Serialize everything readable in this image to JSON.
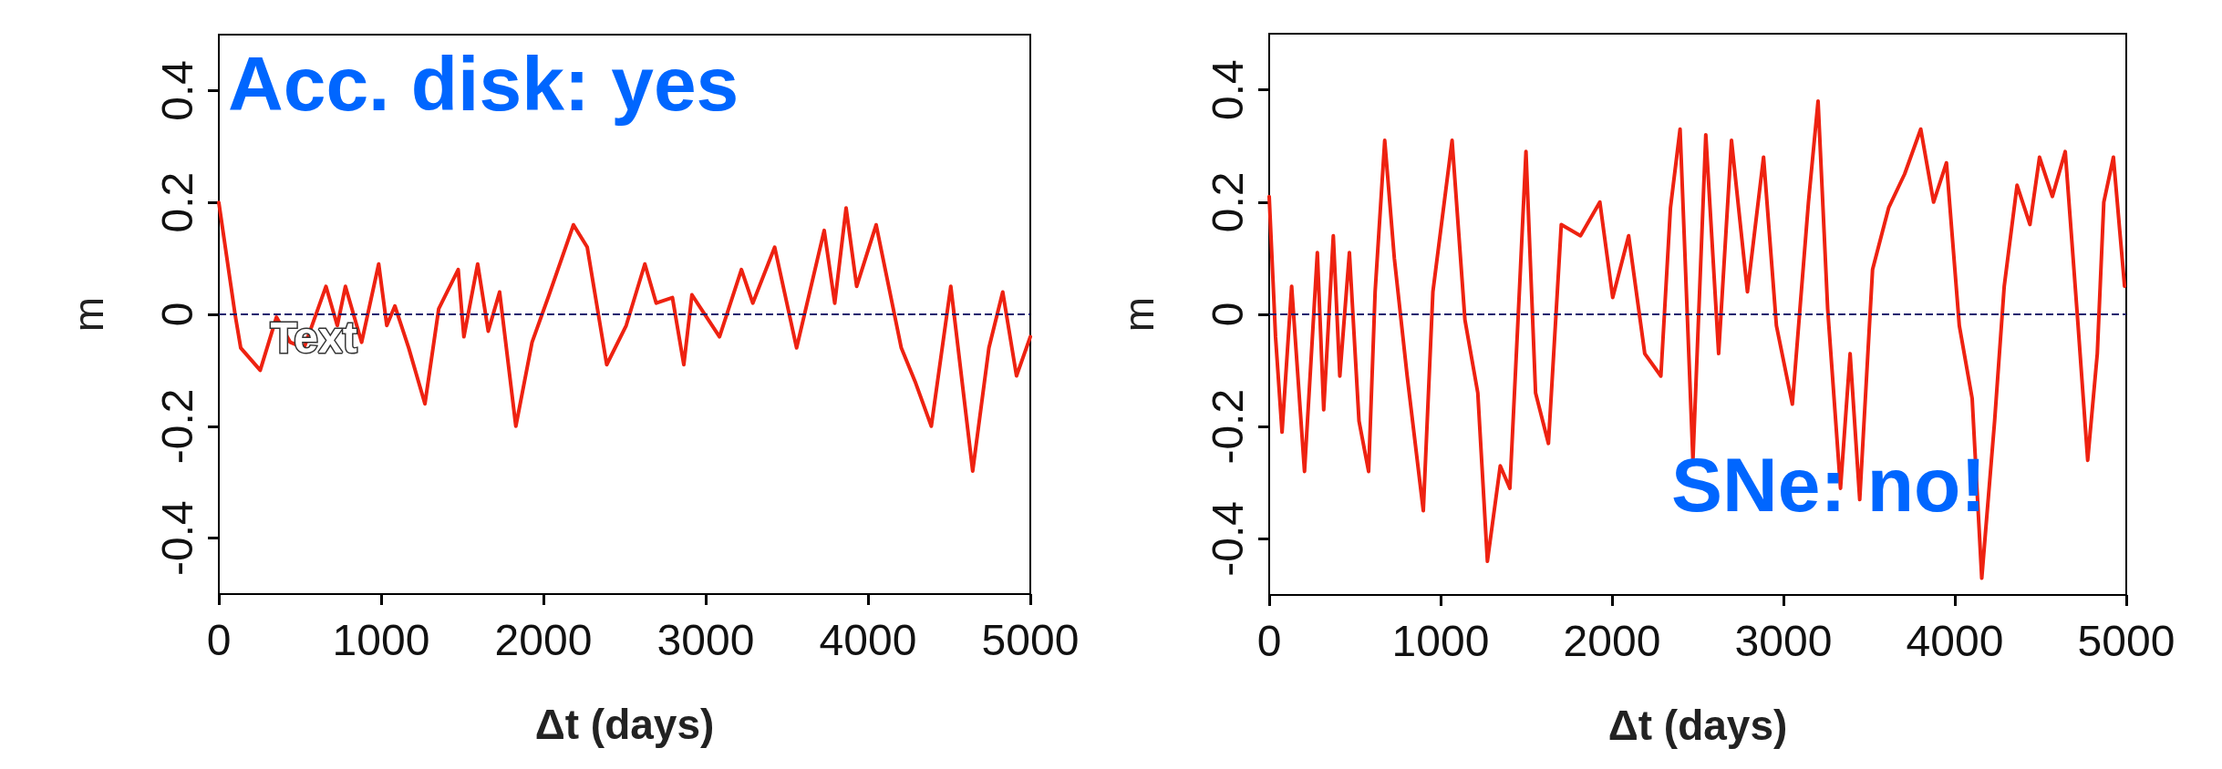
{
  "chart_data": [
    {
      "type": "line",
      "xlabel": "Δt (days)",
      "ylabel": "m",
      "xlim": [
        0,
        5000
      ],
      "xticks": [
        0,
        1000,
        2000,
        3000,
        4000,
        5000
      ],
      "ylim": [
        -0.5,
        0.5
      ],
      "yticks": [
        -0.4,
        -0.2,
        0,
        0.2,
        0.4
      ],
      "grid": false,
      "marker": "none",
      "line_style": "solid",
      "annotations": [
        "Acc. disk: yes",
        "Text"
      ],
      "ref_lines": [
        {
          "axis": "y",
          "value": 0,
          "color": "#1a1a6e",
          "line_style": "dashed"
        }
      ],
      "series": [
        {
          "color": "#ee2211",
          "x": [
            0,
            100,
            135,
            255,
            355,
            440,
            525,
            660,
            730,
            780,
            880,
            985,
            1035,
            1085,
            1170,
            1270,
            1355,
            1475,
            1510,
            1595,
            1660,
            1730,
            1830,
            1930,
            2035,
            2185,
            2270,
            2390,
            2510,
            2625,
            2695,
            2795,
            2865,
            2915,
            3085,
            3220,
            3290,
            3425,
            3560,
            3730,
            3795,
            3865,
            3930,
            4050,
            4205,
            4290,
            4390,
            4510,
            4645,
            4745,
            4830,
            4915,
            5000
          ],
          "values": [
            0.2,
            0.0,
            -0.06,
            -0.1,
            -0.005,
            -0.05,
            -0.06,
            0.05,
            -0.02,
            0.05,
            -0.05,
            0.09,
            -0.02,
            0.015,
            -0.06,
            -0.16,
            0.01,
            0.08,
            -0.04,
            0.09,
            -0.03,
            0.04,
            -0.2,
            -0.05,
            0.035,
            0.16,
            0.12,
            -0.09,
            -0.02,
            0.09,
            0.02,
            0.03,
            -0.09,
            0.035,
            -0.04,
            0.08,
            0.02,
            0.12,
            -0.06,
            0.15,
            0.02,
            0.19,
            0.05,
            0.16,
            -0.06,
            -0.12,
            -0.2,
            0.05,
            -0.28,
            -0.06,
            0.04,
            -0.11,
            -0.04
          ]
        }
      ]
    },
    {
      "type": "line",
      "xlabel": "Δt (days)",
      "ylabel": "m",
      "xlim": [
        0,
        5000
      ],
      "xticks": [
        0,
        1000,
        2000,
        3000,
        4000,
        5000
      ],
      "ylim": [
        -0.5,
        0.5
      ],
      "yticks": [
        -0.4,
        -0.2,
        0,
        0.2,
        0.4
      ],
      "grid": false,
      "marker": "none",
      "line_style": "solid",
      "annotations": [
        "SNe: no!"
      ],
      "ref_lines": [
        {
          "axis": "y",
          "value": 0,
          "color": "#1a1a6e",
          "line_style": "dashed"
        }
      ],
      "series": [
        {
          "color": "#ee2211",
          "x": [
            0,
            37,
            75,
            131,
            206,
            281,
            318,
            374,
            412,
            468,
            524,
            580,
            618,
            674,
            730,
            805,
            899,
            955,
            1067,
            1142,
            1217,
            1273,
            1348,
            1404,
            1461,
            1498,
            1554,
            1629,
            1704,
            1816,
            1929,
            2004,
            2097,
            2191,
            2285,
            2341,
            2397,
            2472,
            2547,
            2622,
            2697,
            2790,
            2884,
            2959,
            3052,
            3146,
            3202,
            3258,
            3333,
            3389,
            3445,
            3520,
            3614,
            3707,
            3801,
            3876,
            3951,
            4026,
            4101,
            4157,
            4232,
            4288,
            4363,
            4438,
            4494,
            4569,
            4644,
            4719,
            4775,
            4831,
            4869,
            4925,
            4990
          ],
          "values": [
            0.21,
            -0.04,
            -0.21,
            0.05,
            -0.28,
            0.11,
            -0.17,
            0.14,
            -0.11,
            0.11,
            -0.19,
            -0.28,
            0.04,
            0.31,
            0.1,
            -0.11,
            -0.35,
            0.04,
            0.31,
            -0.01,
            -0.14,
            -0.44,
            -0.27,
            -0.31,
            0.05,
            0.29,
            -0.14,
            -0.23,
            0.16,
            0.14,
            0.2,
            0.03,
            0.14,
            -0.07,
            -0.11,
            0.19,
            0.33,
            -0.26,
            0.32,
            -0.07,
            0.31,
            0.04,
            0.28,
            -0.02,
            -0.16,
            0.2,
            0.38,
            0.01,
            -0.31,
            -0.07,
            -0.33,
            0.08,
            0.19,
            0.25,
            0.33,
            0.2,
            0.27,
            -0.02,
            -0.15,
            -0.47,
            -0.19,
            0.05,
            0.23,
            0.16,
            0.28,
            0.21,
            0.29,
            -0.02,
            -0.26,
            -0.07,
            0.2,
            0.28,
            0.05
          ]
        }
      ]
    }
  ]
}
